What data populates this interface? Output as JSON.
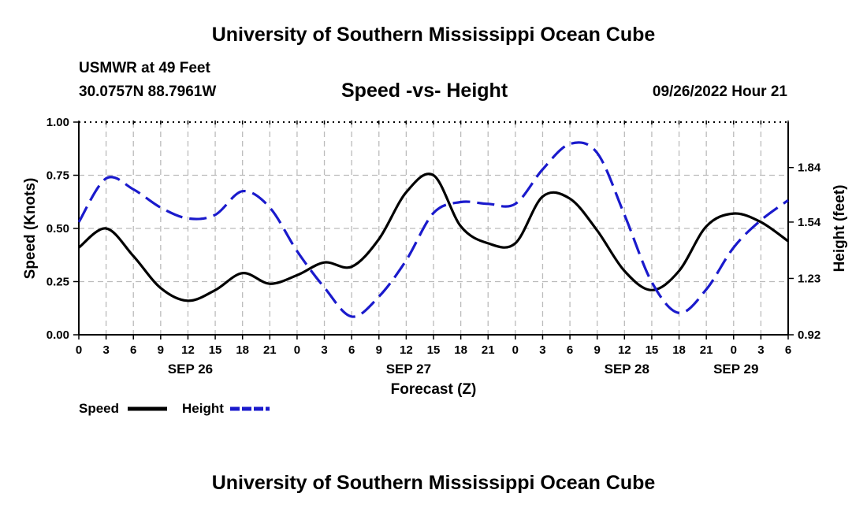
{
  "header": {
    "title": "University of Southern Mississippi Ocean Cube",
    "station": "USMWR at 49 Feet",
    "coordinates": "30.0757N  88.7961W",
    "chart_title": "Speed -vs- Height",
    "datetime": "09/26/2022 Hour 21"
  },
  "footer": {
    "title": "University of Southern Mississippi Ocean Cube"
  },
  "chart_data": {
    "type": "line",
    "title": "Speed -vs- Height",
    "xlabel": "Forecast (Z)",
    "ylabel": "Speed (Knots)",
    "y2label": "Height (feet)",
    "x_ticks": [
      "0",
      "3",
      "6",
      "9",
      "12",
      "15",
      "18",
      "21",
      "0",
      "3",
      "6",
      "9",
      "12",
      "15",
      "18",
      "21",
      "0",
      "3",
      "6",
      "9",
      "12",
      "15",
      "18",
      "21",
      "0",
      "3",
      "6"
    ],
    "x_range_hours": [
      0,
      78
    ],
    "date_labels": [
      {
        "label": "SEP 26",
        "hour": 12
      },
      {
        "label": "SEP 27",
        "hour": 36
      },
      {
        "label": "SEP 28",
        "hour": 60
      },
      {
        "label": "SEP 29",
        "hour": 72
      }
    ],
    "ylim": [
      0,
      1.0
    ],
    "y_ticks": [
      "0.00",
      "0.25",
      "0.50",
      "0.75",
      "1.00"
    ],
    "y2lim": [
      0.92,
      2.09
    ],
    "y2_ticks": [
      "0.92",
      "1.23",
      "1.54",
      "1.84"
    ],
    "grid": true,
    "series": [
      {
        "name": "Speed",
        "axis": "left",
        "color": "#000000",
        "dash": "solid",
        "x": [
          0,
          3,
          6,
          9,
          12,
          15,
          18,
          21,
          24,
          27,
          30,
          33,
          36,
          39,
          42,
          45,
          48,
          51,
          54,
          57,
          60,
          63,
          66,
          69,
          72,
          75,
          78
        ],
        "values": [
          0.41,
          0.5,
          0.37,
          0.22,
          0.16,
          0.21,
          0.29,
          0.24,
          0.28,
          0.34,
          0.32,
          0.45,
          0.67,
          0.75,
          0.51,
          0.43,
          0.43,
          0.65,
          0.64,
          0.49,
          0.3,
          0.21,
          0.3,
          0.51,
          0.57,
          0.53,
          0.44
        ]
      },
      {
        "name": "Height",
        "axis": "right",
        "color": "#1a1acc",
        "dash": "dashed",
        "x": [
          0,
          3,
          6,
          9,
          12,
          15,
          18,
          21,
          24,
          27,
          30,
          33,
          36,
          39,
          42,
          45,
          48,
          51,
          54,
          57,
          60,
          63,
          66,
          69,
          72,
          75,
          78
        ],
        "values": [
          1.54,
          1.78,
          1.72,
          1.62,
          1.56,
          1.58,
          1.71,
          1.62,
          1.38,
          1.18,
          1.02,
          1.13,
          1.33,
          1.59,
          1.65,
          1.64,
          1.64,
          1.83,
          1.97,
          1.92,
          1.58,
          1.21,
          1.04,
          1.17,
          1.4,
          1.55,
          1.66
        ]
      }
    ]
  }
}
